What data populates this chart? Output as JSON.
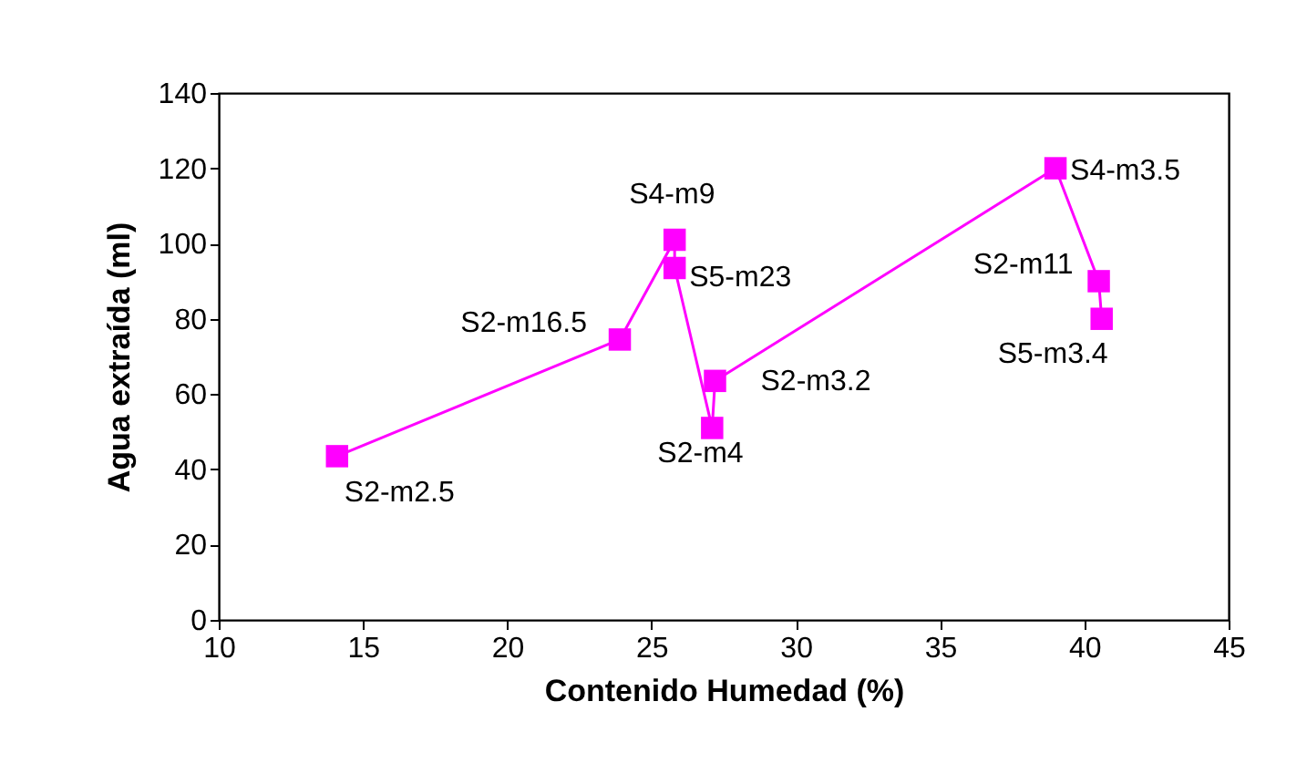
{
  "chart_data": {
    "type": "line",
    "xlabel": "Contenido Humedad (%)",
    "ylabel": "Agua extraída (ml)",
    "x": [
      14.1,
      23.9,
      25.8,
      25.8,
      27.1,
      27.2,
      39.0,
      40.5,
      40.6
    ],
    "series": [
      {
        "color": "#ff00ff",
        "values": [
          43.5,
          74.5,
          101,
          93.5,
          51,
          63.5,
          120,
          90,
          80
        ]
      }
    ],
    "marker": "square",
    "grid": false,
    "xlim": [
      10,
      45
    ],
    "ylim": [
      0,
      140
    ],
    "xticks": [
      10,
      15,
      20,
      25,
      30,
      35,
      40,
      45
    ],
    "yticks": [
      0,
      20,
      40,
      60,
      80,
      100,
      120,
      140
    ],
    "annotations": [
      {
        "text": "S2-m2.5",
        "x": 14.1,
        "y": 43.5
      },
      {
        "text": "S2-m16.5",
        "x": 23.9,
        "y": 74.5
      },
      {
        "text": "S4-m9",
        "x": 25.8,
        "y": 101
      },
      {
        "text": "S5-m23",
        "x": 25.8,
        "y": 93.5
      },
      {
        "text": "S2-m4",
        "x": 27.1,
        "y": 51
      },
      {
        "text": "S2-m3.2",
        "x": 27.2,
        "y": 63.5
      },
      {
        "text": "S4-m3.5",
        "x": 39.0,
        "y": 120
      },
      {
        "text": "S2-m11",
        "x": 40.5,
        "y": 90
      },
      {
        "text": "S5-m3.4",
        "x": 40.6,
        "y": 80
      }
    ]
  }
}
